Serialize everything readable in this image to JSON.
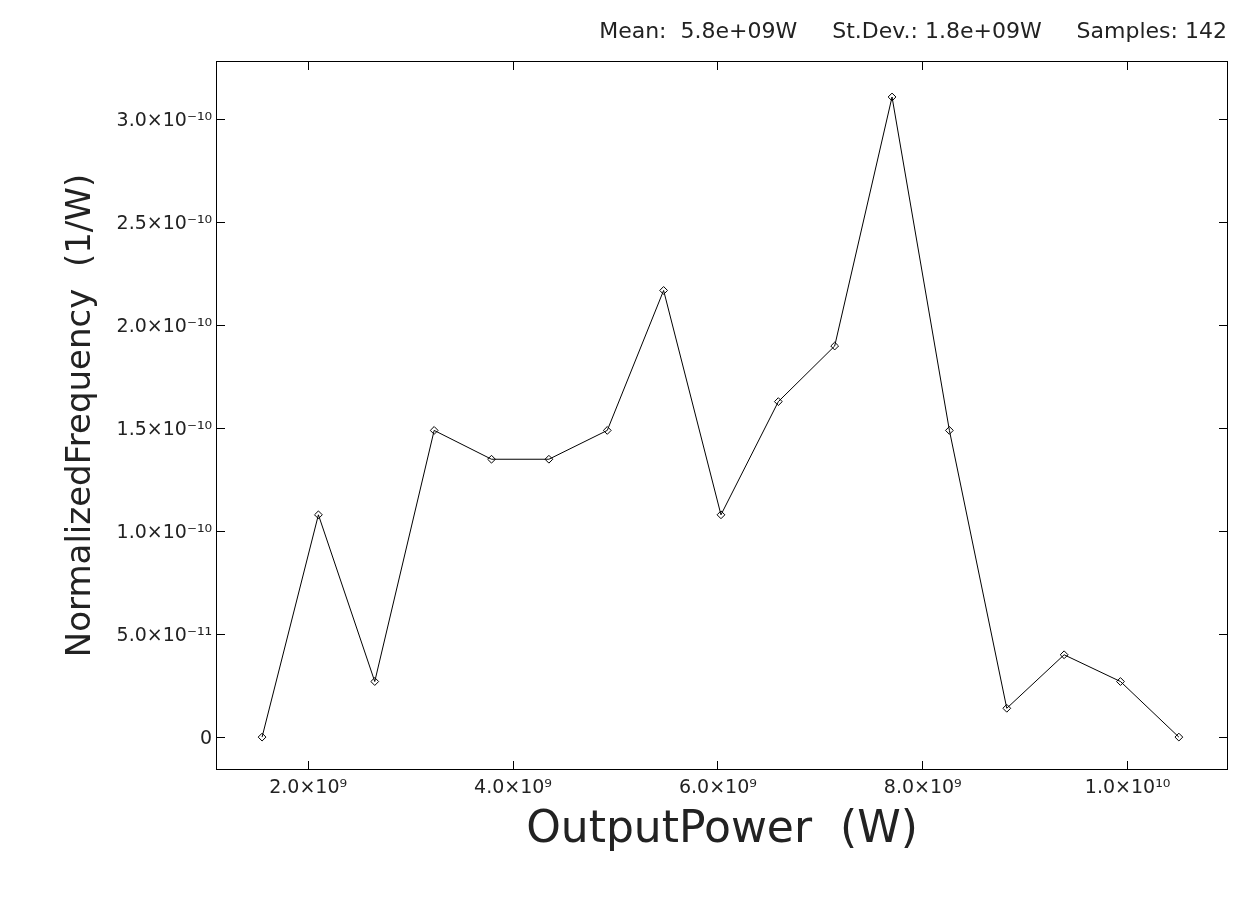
{
  "chart_data": {
    "type": "line",
    "title": "Mean:  5.8e+09W     St.Dev.: 1.8e+09W     Samples: 142",
    "xlabel": "OutputPower  (W)",
    "ylabel": "NormalizedFrequency  (1/W)",
    "x": [
      1550000000.0,
      2100000000.0,
      2650000000.0,
      3230000000.0,
      3790000000.0,
      4350000000.0,
      4920000000.0,
      5470000000.0,
      6030000000.0,
      6590000000.0,
      7140000000.0,
      7700000000.0,
      8260000000.0,
      8820000000.0,
      9380000000.0,
      9930000000.0,
      10500000000.0
    ],
    "series": [
      {
        "color": "#000000",
        "values": [
          0,
          1.08e-10,
          2.7e-11,
          1.49e-10,
          1.35e-10,
          1.35e-10,
          1.49e-10,
          2.17e-10,
          1.08e-10,
          1.63e-10,
          1.9e-10,
          3.11e-10,
          1.49e-10,
          1.4e-11,
          4e-11,
          2.7e-11,
          0
        ]
      }
    ],
    "xlim": [
      1110000000.0,
      10970000000.0
    ],
    "ylim": [
      -1.55e-11,
      3.28e-10
    ],
    "xticks": [
      {
        "value": 2000000000.0,
        "label": "2.0×10⁹"
      },
      {
        "value": 4000000000.0,
        "label": "4.0×10⁹"
      },
      {
        "value": 6000000000.0,
        "label": "6.0×10⁹"
      },
      {
        "value": 8000000000.0,
        "label": "8.0×10⁹"
      },
      {
        "value": 10000000000.0,
        "label": "1.0×10¹⁰"
      }
    ],
    "yticks": [
      0,
      {
        "value": 5e-11,
        "label": "5.0×10⁻¹¹"
      },
      {
        "value": 1e-10,
        "label": "1.0×10⁻¹⁰"
      },
      {
        "value": 1.5e-10,
        "label": "1.5×10⁻¹⁰"
      },
      {
        "value": 2e-10,
        "label": "2.0×10⁻¹⁰"
      },
      {
        "value": 2.5e-10,
        "label": "2.5×10⁻¹⁰"
      },
      {
        "value": 3e-10,
        "label": "3.0×10⁻¹⁰"
      }
    ],
    "legend": false,
    "marker": "diamond",
    "line_style": "solid"
  }
}
